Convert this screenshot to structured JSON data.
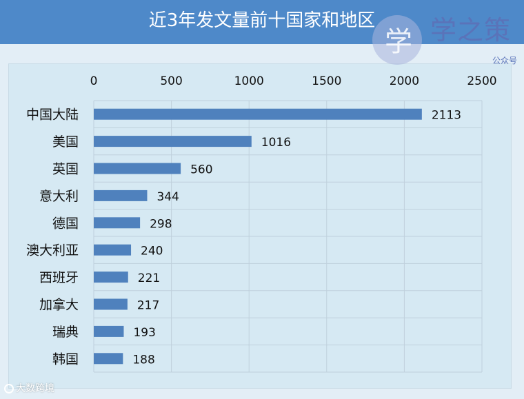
{
  "chart_data": {
    "type": "bar",
    "orientation": "horizontal",
    "title": "近3年发文量前十国家和地区",
    "categories": [
      "中国大陆",
      "美国",
      "英国",
      "意大利",
      "德国",
      "澳大利亚",
      "西班牙",
      "加拿大",
      "瑞典",
      "韩国"
    ],
    "values": [
      2113,
      1016,
      560,
      344,
      298,
      240,
      221,
      217,
      193,
      188
    ],
    "data_labels": [
      "2113",
      "1016",
      "560",
      "344",
      "298",
      "240",
      "221",
      "217",
      "193",
      "188"
    ],
    "xlim": [
      0,
      2500
    ],
    "x_ticks": [
      0,
      500,
      1000,
      1500,
      2000,
      2500
    ],
    "x_tick_labels": [
      "0",
      "500",
      "1000",
      "1500",
      "2000",
      "2500"
    ],
    "x_axis_position": "top",
    "grid": true,
    "bar_color": "#4f81bd",
    "xlabel": "",
    "ylabel": ""
  },
  "logo": {
    "glyph": "学",
    "text": "学之策",
    "subtitle": "公众号"
  },
  "watermark": {
    "text": "大数跨境"
  },
  "colors": {
    "title_bar": "#4e89c9",
    "page_background": "#e3eef6",
    "plot_background": "#d6e9f3",
    "logo": "#5a73b9"
  }
}
